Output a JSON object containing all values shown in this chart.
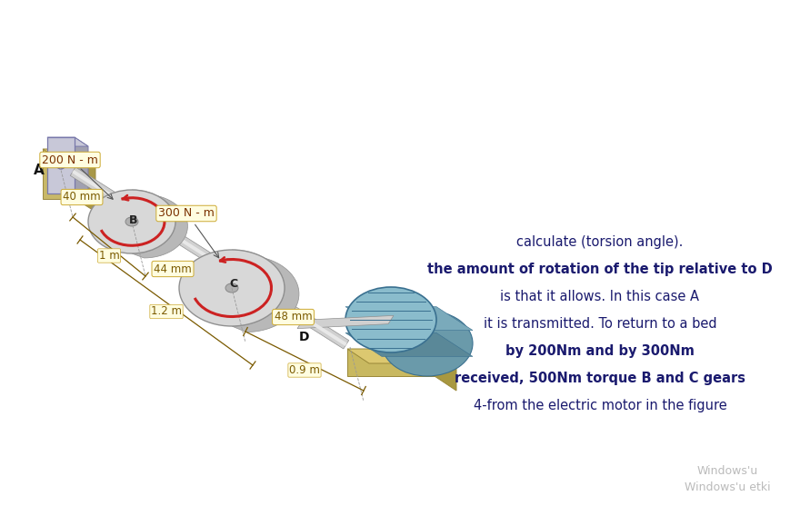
{
  "bg_color": "#ffffff",
  "text_lines": [
    {
      "text": "4-from the electric motor in the figure",
      "bold": false
    },
    {
      "text": "received, 500Nm torque B and C gears",
      "bold": true
    },
    {
      "text": "by 200Nm and by 300Nm",
      "bold": true
    },
    {
      "text": "it is transmitted. To return to a bed",
      "bold": false
    },
    {
      "text": "is that it allows. In this case A",
      "bold": false
    },
    {
      "text": "the amount of rotation of the tip relative to D",
      "bold": true
    },
    {
      "text": "calculate (torsion angle).",
      "bold": false
    }
  ],
  "text_color": "#1a1a6e",
  "text_fontsize": 10.5,
  "windows_text1": "Windows'u",
  "windows_text2": "Windows'u etki",
  "windows_color": "#bbbbbb",
  "label_300": "300 N - m",
  "label_200": "200 N - m",
  "label_48mm": "48 mm",
  "label_44mm": "44 mm",
  "label_40mm": "40 mm",
  "label_09m": "0.9 m",
  "label_12m": "1.2 m",
  "label_1m": "1 m",
  "label_A": "A",
  "label_B": "B",
  "label_C": "C",
  "label_D": "D",
  "torque_label_color": "#7a3000",
  "dim_label_color": "#7a5a00",
  "arrow_color": "#cc2222",
  "shaft_color_light": "#d0d0d0",
  "shaft_color_mid": "#b0b0b0",
  "shaft_color_dark": "#909090",
  "disk_color_light": "#d8d8d8",
  "disk_color_mid": "#b8b8b8",
  "disk_color_dark": "#909090",
  "motor_color_light": "#9abccc",
  "motor_color_mid": "#7a9db0",
  "base_color_light": "#d8c878",
  "base_color_mid": "#b8a858",
  "wall_color": "#c0c0cc"
}
